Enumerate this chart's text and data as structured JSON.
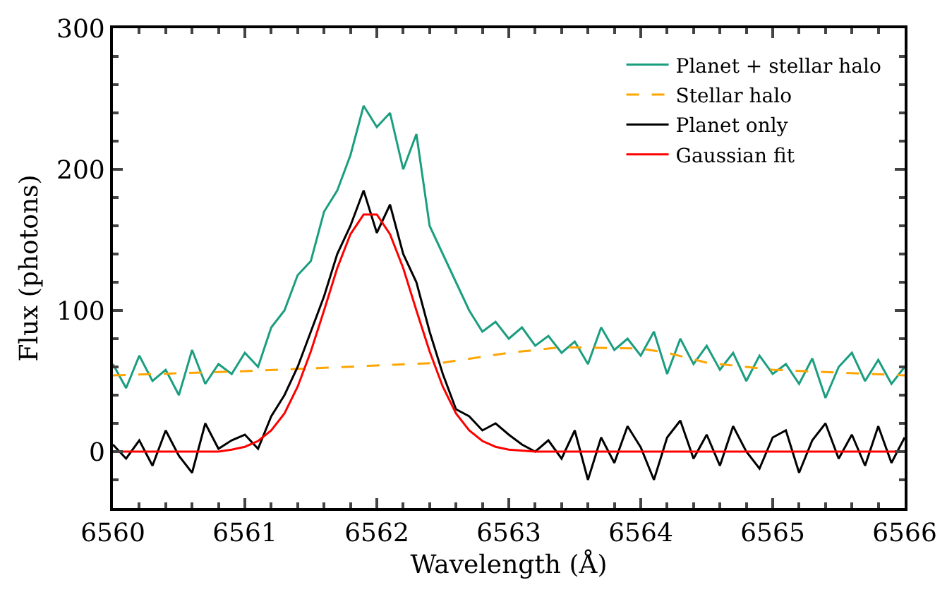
{
  "chart_data": {
    "type": "line",
    "xlabel": "Wavelength (Å)",
    "ylabel": "Flux (photons)",
    "x": [
      6560.0,
      6560.1,
      6560.2,
      6560.3,
      6560.4,
      6560.5,
      6560.6,
      6560.7,
      6560.8,
      6560.9,
      6561.0,
      6561.1,
      6561.2,
      6561.3,
      6561.4,
      6561.5,
      6561.6,
      6561.7,
      6561.8,
      6561.9,
      6562.0,
      6562.1,
      6562.2,
      6562.3,
      6562.4,
      6562.5,
      6562.6,
      6562.7,
      6562.8,
      6562.9,
      6563.0,
      6563.1,
      6563.2,
      6563.3,
      6563.4,
      6563.5,
      6563.6,
      6563.7,
      6563.8,
      6563.9,
      6564.0,
      6564.1,
      6564.2,
      6564.3,
      6564.4,
      6564.5,
      6564.6,
      6564.7,
      6564.8,
      6564.9,
      6565.0,
      6565.1,
      6565.2,
      6565.3,
      6565.4,
      6565.5,
      6565.6,
      6565.7,
      6565.8,
      6565.9,
      6566.0
    ],
    "series": [
      {
        "name": "Planet + stellar halo",
        "color": "#1b9e80",
        "line_style": "solid",
        "values": [
          62,
          45,
          68,
          50,
          58,
          40,
          72,
          48,
          62,
          55,
          70,
          60,
          88,
          100,
          125,
          135,
          170,
          185,
          210,
          245,
          230,
          240,
          200,
          225,
          160,
          140,
          120,
          100,
          85,
          92,
          80,
          88,
          75,
          82,
          70,
          78,
          62,
          88,
          72,
          80,
          68,
          85,
          55,
          80,
          62,
          75,
          58,
          70,
          50,
          68,
          55,
          62,
          48,
          66,
          38,
          60,
          70,
          50,
          65,
          48,
          60
        ]
      },
      {
        "name": "Stellar halo",
        "color": "#ffa500",
        "line_style": "dashed",
        "x": [
          6560,
          6561,
          6562,
          6562.5,
          6563,
          6563.4,
          6564,
          6564.2,
          6564.5,
          6565,
          6565.5,
          6566
        ],
        "values": [
          54,
          57,
          61,
          63,
          70,
          74,
          73,
          70,
          63,
          58,
          56,
          54
        ]
      },
      {
        "name": "Planet only",
        "color": "#000000",
        "line_style": "solid",
        "values": [
          5,
          -5,
          8,
          -10,
          15,
          -3,
          -15,
          20,
          2,
          8,
          12,
          2,
          25,
          40,
          60,
          85,
          110,
          140,
          160,
          185,
          155,
          175,
          140,
          120,
          85,
          55,
          30,
          25,
          15,
          20,
          12,
          5,
          0,
          8,
          -5,
          15,
          -20,
          10,
          -8,
          18,
          3,
          -20,
          10,
          22,
          -5,
          12,
          -10,
          18,
          0,
          -12,
          10,
          15,
          -15,
          8,
          20,
          -5,
          12,
          -10,
          18,
          -8,
          10
        ]
      },
      {
        "name": "Gaussian fit",
        "color": "#ff0000",
        "line_style": "solid",
        "x": [
          6560,
          6560.8,
          6560.9,
          6561.0,
          6561.1,
          6561.2,
          6561.3,
          6561.4,
          6561.5,
          6561.6,
          6561.7,
          6561.8,
          6561.9,
          6562.0,
          6562.1,
          6562.2,
          6562.3,
          6562.4,
          6562.5,
          6562.6,
          6562.7,
          6562.8,
          6562.9,
          6563.0,
          6563.2,
          6566
        ],
        "values": [
          0,
          0,
          1.4,
          3.4,
          7.5,
          15,
          27,
          46,
          71,
          100,
          130,
          154,
          168,
          168,
          154,
          130,
          100,
          71,
          46,
          27,
          15,
          7.5,
          3.4,
          1.4,
          0,
          0
        ]
      }
    ],
    "xlim": [
      6560,
      6566
    ],
    "xticks": [
      6560,
      6561,
      6562,
      6563,
      6564,
      6565,
      6566
    ],
    "ylim": [
      -40,
      300
    ],
    "yticks": [
      0,
      100,
      200,
      300
    ],
    "grid": false,
    "legend": "top right",
    "marker": "none"
  }
}
